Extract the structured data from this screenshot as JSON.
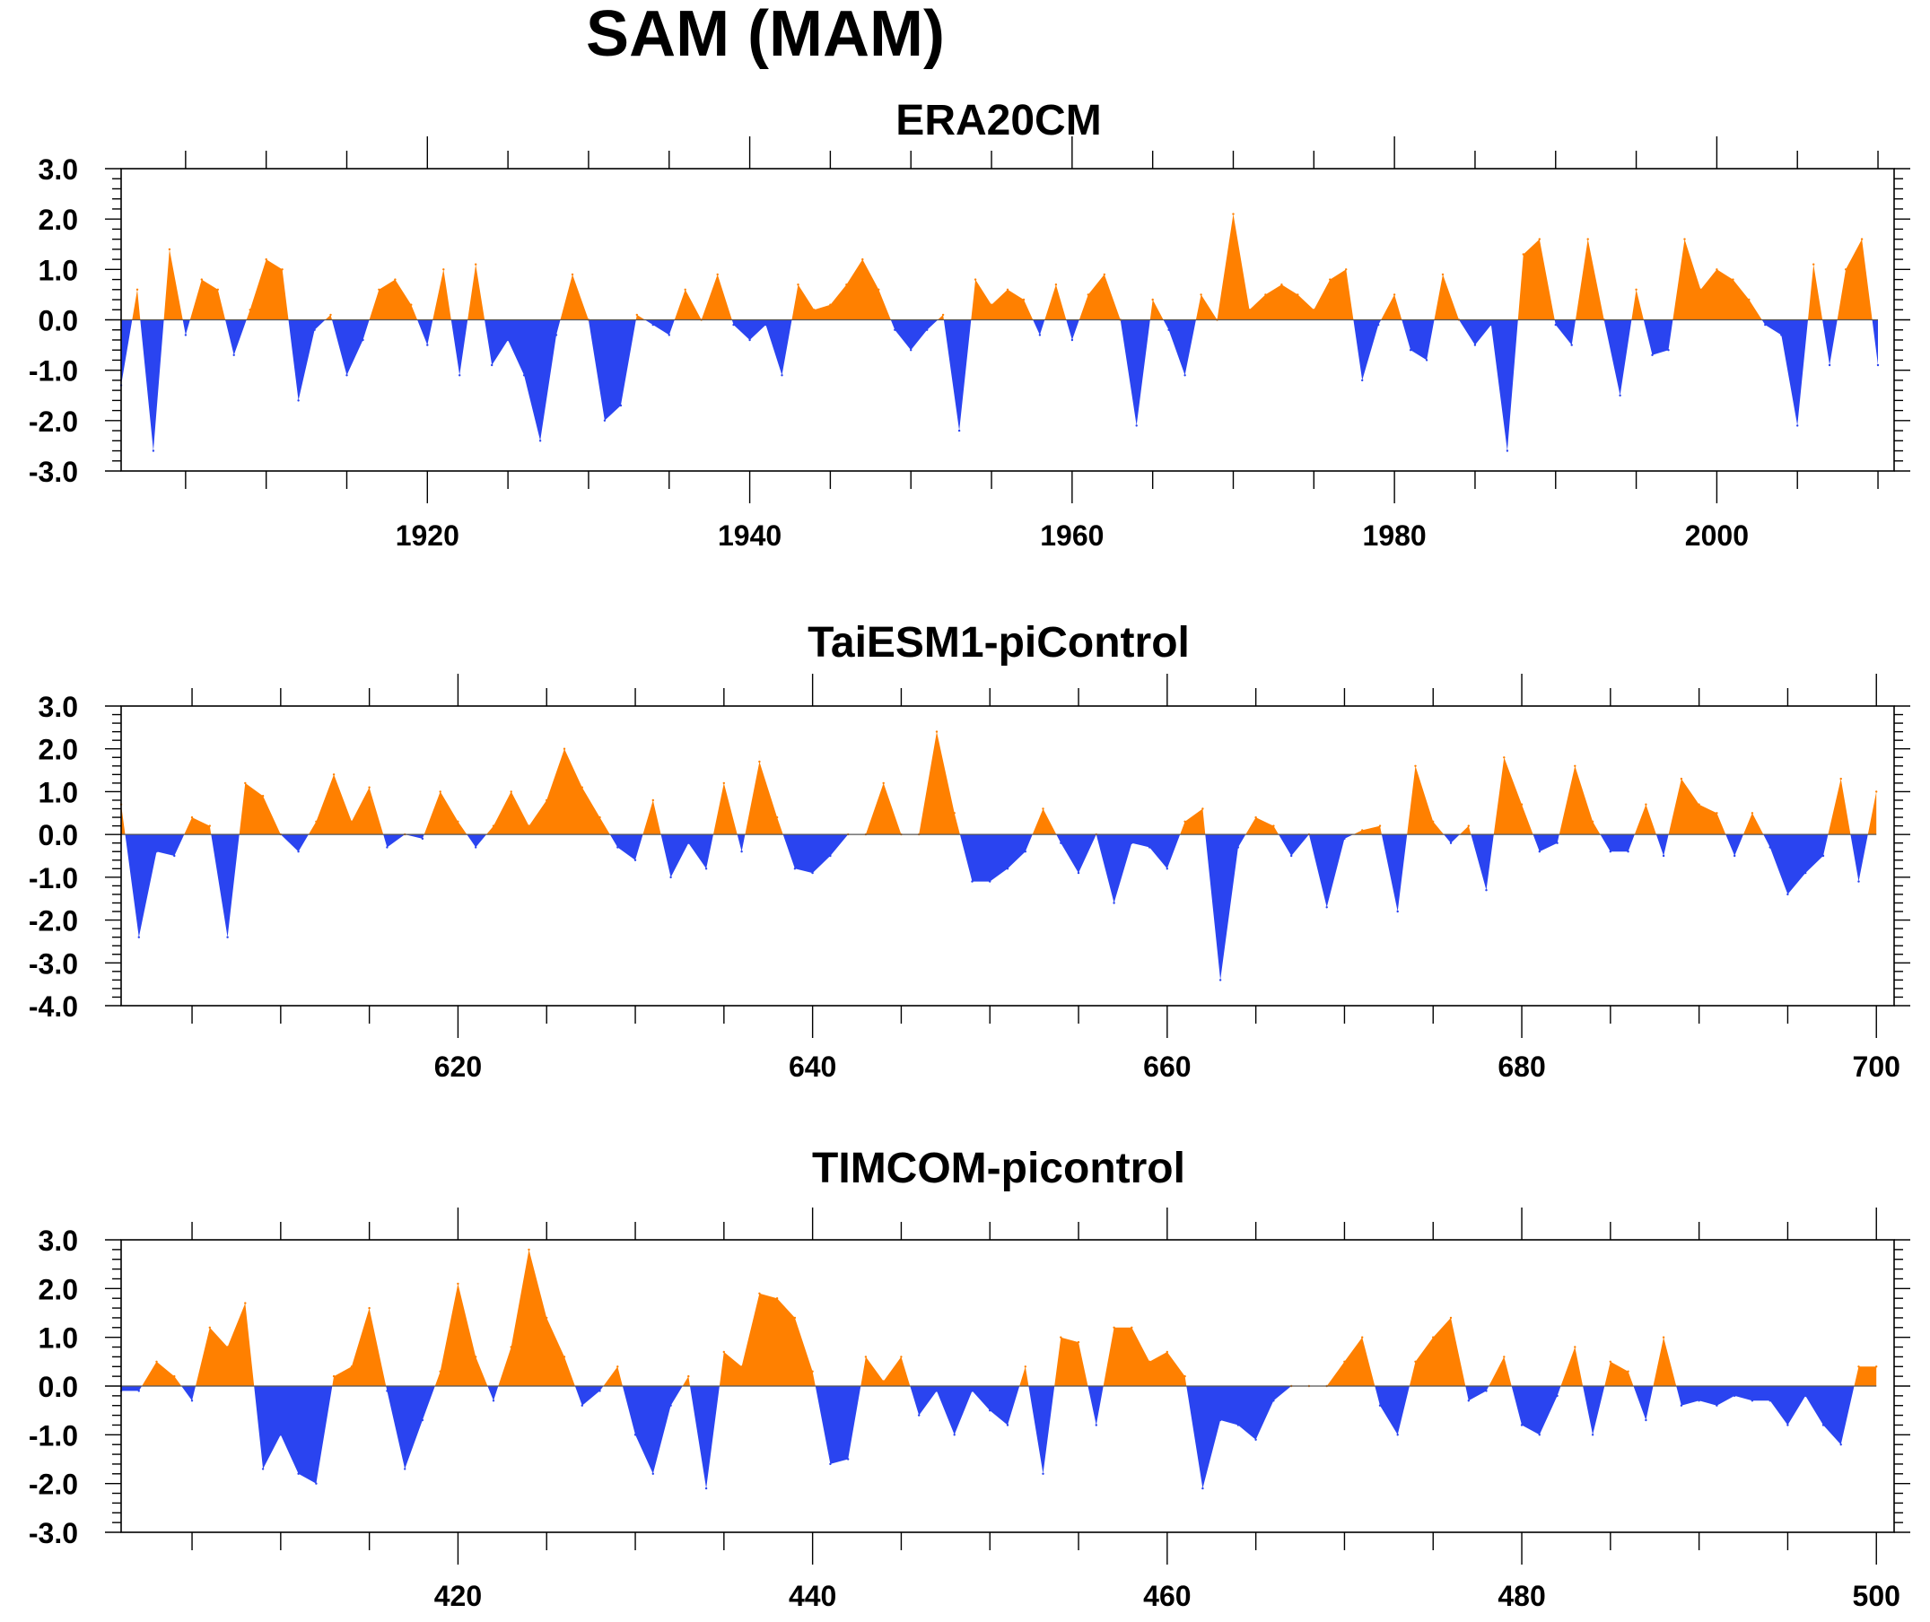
{
  "title": "SAM (MAM)",
  "colors": {
    "positive": "#ff8000",
    "negative": "#2a44f0",
    "frame": "#000000"
  },
  "chart_data": [
    {
      "type": "area",
      "title": "ERA20CM",
      "xlabel": "",
      "ylabel": "",
      "xlim": [
        1901,
        2011
      ],
      "ylim": [
        -3.0,
        3.0
      ],
      "yticks": [
        "3.0",
        "2.0",
        "1.0",
        "0.0",
        "-1.0",
        "-2.0",
        "-3.0"
      ],
      "ytick_values": [
        3,
        2,
        1,
        0,
        -1,
        -2,
        -3
      ],
      "xticks": [
        "1920",
        "1940",
        "1960",
        "1980",
        "2000"
      ],
      "xtick_values": [
        1920,
        1940,
        1960,
        1980,
        2000
      ],
      "grid": false,
      "fill": "positive values orange, negative values blue",
      "x_start": 1901,
      "values": [
        -1.3,
        0.6,
        -2.6,
        1.4,
        -0.3,
        0.8,
        0.6,
        -0.7,
        0.2,
        1.2,
        1.0,
        -1.6,
        -0.2,
        0.1,
        -1.1,
        -0.4,
        0.6,
        0.8,
        0.3,
        -0.5,
        1.0,
        -1.1,
        1.1,
        -0.9,
        -0.4,
        -1.1,
        -2.4,
        -0.3,
        0.9,
        0.0,
        -2.0,
        -1.7,
        0.1,
        -0.1,
        -0.3,
        0.6,
        0.0,
        0.9,
        -0.1,
        -0.4,
        -0.1,
        -1.1,
        0.7,
        0.2,
        0.3,
        0.7,
        1.2,
        0.6,
        -0.2,
        -0.6,
        -0.2,
        0.1,
        -2.2,
        0.8,
        0.3,
        0.6,
        0.4,
        -0.3,
        0.7,
        -0.4,
        0.5,
        0.9,
        0.0,
        -2.1,
        0.4,
        -0.2,
        -1.1,
        0.5,
        0.0,
        2.1,
        0.2,
        0.5,
        0.7,
        0.5,
        0.2,
        0.8,
        1.0,
        -1.2,
        -0.1,
        0.5,
        -0.6,
        -0.8,
        0.9,
        0.0,
        -0.5,
        -0.1,
        -2.6,
        1.3,
        1.6,
        -0.1,
        -0.5,
        1.6,
        0.0,
        -1.5,
        0.6,
        -0.7,
        -0.6,
        1.6,
        0.6,
        1.0,
        0.8,
        0.4,
        -0.1,
        -0.3,
        -2.1,
        1.1,
        -0.9,
        1.0,
        1.6,
        -0.9
      ]
    },
    {
      "type": "area",
      "title": "TaiESM1-piControl",
      "xlabel": "",
      "ylabel": "",
      "xlim": [
        601,
        701
      ],
      "ylim": [
        -4.0,
        3.0
      ],
      "yticks": [
        "3.0",
        "2.0",
        "1.0",
        "0.0",
        "-1.0",
        "-2.0",
        "-3.0",
        "-4.0"
      ],
      "ytick_values": [
        3,
        2,
        1,
        0,
        -1,
        -2,
        -3,
        -4
      ],
      "xticks": [
        "620",
        "640",
        "660",
        "680",
        "700"
      ],
      "xtick_values": [
        620,
        640,
        660,
        680,
        700
      ],
      "grid": false,
      "fill": "positive values orange, negative values blue",
      "x_start": 601,
      "values": [
        0.7,
        -2.4,
        -0.4,
        -0.5,
        0.4,
        0.2,
        -2.4,
        1.2,
        0.9,
        0.0,
        -0.4,
        0.3,
        1.4,
        0.3,
        1.1,
        -0.3,
        0.0,
        -0.1,
        1.0,
        0.3,
        -0.3,
        0.2,
        1.0,
        0.2,
        0.8,
        2.0,
        1.1,
        0.4,
        -0.3,
        -0.6,
        0.8,
        -1.0,
        -0.2,
        -0.8,
        1.2,
        -0.4,
        1.7,
        0.4,
        -0.8,
        -0.9,
        -0.5,
        0.0,
        0.0,
        1.2,
        0.0,
        0.0,
        2.4,
        0.5,
        -1.1,
        -1.1,
        -0.8,
        -0.4,
        0.6,
        -0.2,
        -0.9,
        0.0,
        -1.6,
        -0.2,
        -0.3,
        -0.8,
        0.3,
        0.6,
        -3.4,
        -0.3,
        0.4,
        0.2,
        -0.5,
        0.0,
        -1.7,
        -0.1,
        0.1,
        0.2,
        -1.8,
        1.6,
        0.3,
        -0.2,
        0.2,
        -1.3,
        1.8,
        0.7,
        -0.4,
        -0.2,
        1.6,
        0.3,
        -0.4,
        -0.4,
        0.7,
        -0.5,
        1.3,
        0.7,
        0.5,
        -0.5,
        0.5,
        -0.3,
        -1.4,
        -0.9,
        -0.5,
        1.3,
        -1.1,
        1.0
      ]
    },
    {
      "type": "area",
      "title": "TIMCOM-picontrol",
      "xlabel": "",
      "ylabel": "",
      "xlim": [
        401,
        501
      ],
      "ylim": [
        -3.0,
        3.0
      ],
      "yticks": [
        "3.0",
        "2.0",
        "1.0",
        "0.0",
        "-1.0",
        "-2.0",
        "-3.0"
      ],
      "ytick_values": [
        3,
        2,
        1,
        0,
        -1,
        -2,
        -3
      ],
      "xticks": [
        "420",
        "440",
        "460",
        "480",
        "500"
      ],
      "xtick_values": [
        420,
        440,
        460,
        480,
        500
      ],
      "grid": false,
      "fill": "positive values orange, negative values blue",
      "x_start": 401,
      "values": [
        -0.1,
        -0.1,
        0.5,
        0.2,
        -0.3,
        1.2,
        0.8,
        1.7,
        -1.7,
        -1.0,
        -1.8,
        -2.0,
        0.2,
        0.4,
        1.6,
        -0.1,
        -1.7,
        -0.7,
        0.3,
        2.1,
        0.6,
        -0.3,
        0.8,
        2.8,
        1.4,
        0.6,
        -0.4,
        -0.1,
        0.4,
        -1.0,
        -1.8,
        -0.4,
        0.2,
        -2.1,
        0.7,
        0.4,
        1.9,
        1.8,
        1.4,
        0.3,
        -1.6,
        -1.5,
        0.6,
        0.1,
        0.6,
        -0.6,
        -0.1,
        -1.0,
        -0.1,
        -0.5,
        -0.8,
        0.4,
        -1.8,
        1.0,
        0.9,
        -0.8,
        1.2,
        1.2,
        0.5,
        0.7,
        0.2,
        -2.1,
        -0.7,
        -0.8,
        -1.1,
        -0.3,
        0.0,
        0.0,
        0.0,
        0.5,
        1.0,
        -0.4,
        -1.0,
        0.5,
        1.0,
        1.4,
        -0.3,
        -0.1,
        0.6,
        -0.8,
        -1.0,
        -0.2,
        0.8,
        -1.0,
        0.5,
        0.3,
        -0.7,
        1.0,
        -0.4,
        -0.3,
        -0.4,
        -0.2,
        -0.3,
        -0.3,
        -0.8,
        -0.2,
        -0.8,
        -1.2,
        0.4,
        0.4
      ]
    }
  ]
}
